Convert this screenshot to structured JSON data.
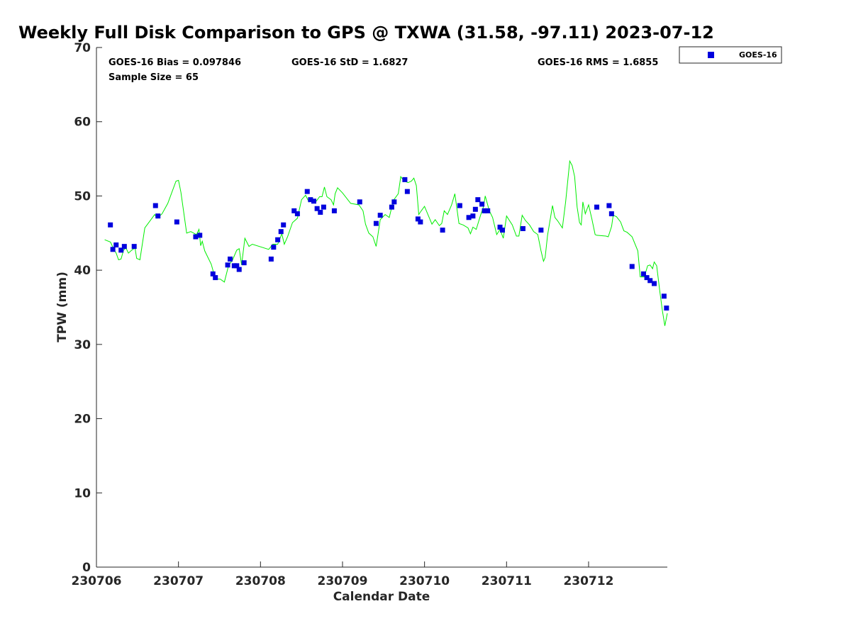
{
  "chart_data": {
    "type": "scatter",
    "title": "Weekly Full Disk Comparison to GPS @ TXWA (31.58, -97.11) 2023-07-12",
    "xlabel": "Calendar Date",
    "ylabel": "TPW (mm)",
    "xlim": [
      0.0,
      6.96
    ],
    "ylim": [
      0,
      70
    ],
    "x_tick_values": [
      0,
      1,
      2,
      3,
      4,
      5,
      6
    ],
    "x_tick_labels": [
      "230706",
      "230707",
      "230708",
      "230709",
      "230710",
      "230711",
      "230712"
    ],
    "y_ticks": [
      0,
      10,
      20,
      30,
      40,
      50,
      60,
      70
    ],
    "x_units": "days since 230706",
    "grid": false,
    "legend_position": "top-right",
    "stats": {
      "bias": "GOES-16 Bias = 0.097846",
      "std": "GOES-16 StD = 1.6827",
      "rms": "GOES-16 RMS = 1.6855",
      "sample_size": "Sample Size = 65"
    },
    "series": [
      {
        "name": "GOES-16",
        "kind": "scatter",
        "marker": "square",
        "color": "#0000dd",
        "points": [
          [
            0.17,
            46.1
          ],
          [
            0.2,
            42.8
          ],
          [
            0.24,
            43.4
          ],
          [
            0.3,
            42.7
          ],
          [
            0.34,
            43.2
          ],
          [
            0.46,
            43.2
          ],
          [
            0.72,
            48.7
          ],
          [
            0.75,
            47.3
          ],
          [
            0.98,
            46.5
          ],
          [
            1.21,
            44.5
          ],
          [
            1.26,
            44.7
          ],
          [
            1.42,
            39.5
          ],
          [
            1.45,
            39.0
          ],
          [
            1.6,
            40.7
          ],
          [
            1.63,
            41.5
          ],
          [
            1.68,
            40.6
          ],
          [
            1.71,
            40.6
          ],
          [
            1.74,
            40.1
          ],
          [
            1.8,
            41.0
          ],
          [
            2.13,
            41.5
          ],
          [
            2.16,
            43.1
          ],
          [
            2.21,
            44.1
          ],
          [
            2.25,
            45.2
          ],
          [
            2.28,
            46.1
          ],
          [
            2.41,
            48.0
          ],
          [
            2.45,
            47.6
          ],
          [
            2.57,
            50.6
          ],
          [
            2.61,
            49.5
          ],
          [
            2.65,
            49.3
          ],
          [
            2.69,
            48.3
          ],
          [
            2.73,
            47.8
          ],
          [
            2.77,
            48.5
          ],
          [
            2.9,
            48.0
          ],
          [
            3.21,
            49.2
          ],
          [
            3.41,
            46.3
          ],
          [
            3.46,
            47.4
          ],
          [
            3.6,
            48.5
          ],
          [
            3.63,
            49.2
          ],
          [
            3.76,
            52.2
          ],
          [
            3.79,
            50.6
          ],
          [
            3.92,
            46.9
          ],
          [
            3.95,
            46.5
          ],
          [
            4.22,
            45.4
          ],
          [
            4.43,
            48.7
          ],
          [
            4.54,
            47.1
          ],
          [
            4.59,
            47.3
          ],
          [
            4.62,
            48.2
          ],
          [
            4.65,
            49.5
          ],
          [
            4.7,
            48.9
          ],
          [
            4.73,
            48.0
          ],
          [
            4.77,
            48.0
          ],
          [
            4.92,
            45.8
          ],
          [
            4.95,
            45.4
          ],
          [
            5.2,
            45.6
          ],
          [
            5.42,
            45.4
          ],
          [
            6.1,
            48.5
          ],
          [
            6.25,
            48.7
          ],
          [
            6.28,
            47.6
          ],
          [
            6.53,
            40.5
          ],
          [
            6.67,
            39.5
          ],
          [
            6.71,
            39.0
          ],
          [
            6.75,
            38.6
          ],
          [
            6.8,
            38.2
          ],
          [
            6.92,
            36.5
          ],
          [
            6.95,
            34.9
          ]
        ]
      },
      {
        "name": "",
        "kind": "line",
        "color": "#00ee00",
        "points": [
          [
            0.1,
            44.1
          ],
          [
            0.17,
            43.8
          ],
          [
            0.2,
            43.1
          ],
          [
            0.24,
            42.3
          ],
          [
            0.27,
            41.4
          ],
          [
            0.3,
            41.5
          ],
          [
            0.33,
            42.7
          ],
          [
            0.36,
            43.0
          ],
          [
            0.39,
            42.3
          ],
          [
            0.43,
            42.7
          ],
          [
            0.47,
            43.0
          ],
          [
            0.49,
            41.6
          ],
          [
            0.53,
            41.4
          ],
          [
            0.59,
            45.7
          ],
          [
            0.67,
            46.9
          ],
          [
            0.71,
            47.5
          ],
          [
            0.74,
            47.0
          ],
          [
            0.8,
            47.6
          ],
          [
            0.87,
            49.0
          ],
          [
            0.92,
            50.5
          ],
          [
            0.97,
            52.0
          ],
          [
            1.0,
            52.1
          ],
          [
            1.03,
            50.5
          ],
          [
            1.1,
            45.0
          ],
          [
            1.15,
            45.2
          ],
          [
            1.22,
            44.8
          ],
          [
            1.25,
            45.5
          ],
          [
            1.27,
            43.3
          ],
          [
            1.29,
            43.9
          ],
          [
            1.32,
            42.6
          ],
          [
            1.4,
            40.8
          ],
          [
            1.45,
            38.8
          ],
          [
            1.51,
            38.8
          ],
          [
            1.56,
            38.4
          ],
          [
            1.61,
            40.6
          ],
          [
            1.66,
            41.4
          ],
          [
            1.71,
            42.7
          ],
          [
            1.74,
            42.9
          ],
          [
            1.77,
            40.7
          ],
          [
            1.81,
            44.3
          ],
          [
            1.86,
            43.2
          ],
          [
            1.9,
            43.5
          ],
          [
            2.1,
            42.8
          ],
          [
            2.15,
            43.5
          ],
          [
            2.21,
            43.5
          ],
          [
            2.26,
            44.9
          ],
          [
            2.29,
            43.5
          ],
          [
            2.33,
            44.5
          ],
          [
            2.39,
            46.4
          ],
          [
            2.45,
            47.0
          ],
          [
            2.5,
            49.5
          ],
          [
            2.55,
            50.1
          ],
          [
            2.59,
            49.2
          ],
          [
            2.64,
            49.5
          ],
          [
            2.68,
            49.3
          ],
          [
            2.72,
            49.9
          ],
          [
            2.75,
            49.9
          ],
          [
            2.78,
            51.2
          ],
          [
            2.81,
            49.9
          ],
          [
            2.86,
            49.5
          ],
          [
            2.89,
            48.8
          ],
          [
            2.91,
            50.3
          ],
          [
            2.94,
            51.1
          ],
          [
            3.0,
            50.4
          ],
          [
            3.1,
            49.0
          ],
          [
            3.2,
            48.8
          ],
          [
            3.25,
            48.0
          ],
          [
            3.28,
            46.2
          ],
          [
            3.32,
            45.0
          ],
          [
            3.37,
            44.5
          ],
          [
            3.41,
            43.2
          ],
          [
            3.46,
            46.8
          ],
          [
            3.52,
            47.5
          ],
          [
            3.57,
            47.1
          ],
          [
            3.62,
            49.4
          ],
          [
            3.68,
            50.3
          ],
          [
            3.71,
            52.6
          ],
          [
            3.75,
            52.0
          ],
          [
            3.8,
            51.8
          ],
          [
            3.84,
            52.0
          ],
          [
            3.87,
            52.4
          ],
          [
            3.9,
            51.4
          ],
          [
            3.93,
            47.5
          ],
          [
            3.96,
            48.0
          ],
          [
            4.0,
            48.6
          ],
          [
            4.09,
            46.2
          ],
          [
            4.13,
            46.8
          ],
          [
            4.18,
            46.0
          ],
          [
            4.21,
            46.3
          ],
          [
            4.24,
            48.0
          ],
          [
            4.28,
            47.5
          ],
          [
            4.33,
            48.8
          ],
          [
            4.37,
            50.3
          ],
          [
            4.42,
            46.3
          ],
          [
            4.47,
            46.1
          ],
          [
            4.53,
            45.7
          ],
          [
            4.56,
            44.9
          ],
          [
            4.59,
            45.8
          ],
          [
            4.63,
            45.5
          ],
          [
            4.68,
            47.3
          ],
          [
            4.72,
            48.6
          ],
          [
            4.74,
            50.0
          ],
          [
            4.79,
            48.0
          ],
          [
            4.83,
            47.1
          ],
          [
            4.88,
            44.8
          ],
          [
            4.92,
            45.5
          ],
          [
            4.96,
            44.3
          ],
          [
            5.0,
            47.3
          ],
          [
            5.07,
            46.1
          ],
          [
            5.12,
            44.6
          ],
          [
            5.15,
            44.6
          ],
          [
            5.19,
            47.4
          ],
          [
            5.23,
            46.7
          ],
          [
            5.28,
            46.1
          ],
          [
            5.33,
            45.2
          ],
          [
            5.38,
            44.8
          ],
          [
            5.42,
            42.6
          ],
          [
            5.45,
            41.2
          ],
          [
            5.47,
            41.7
          ],
          [
            5.5,
            44.7
          ],
          [
            5.56,
            48.7
          ],
          [
            5.59,
            47.1
          ],
          [
            5.62,
            46.7
          ],
          [
            5.68,
            45.7
          ],
          [
            5.72,
            49.2
          ],
          [
            5.77,
            54.7
          ],
          [
            5.8,
            54.1
          ],
          [
            5.83,
            52.6
          ],
          [
            5.86,
            48.5
          ],
          [
            5.89,
            46.4
          ],
          [
            5.91,
            46.1
          ],
          [
            5.93,
            49.2
          ],
          [
            5.96,
            47.6
          ],
          [
            6.0,
            48.8
          ],
          [
            6.04,
            46.9
          ],
          [
            6.08,
            44.8
          ],
          [
            6.1,
            44.7
          ],
          [
            6.21,
            44.6
          ],
          [
            6.24,
            44.5
          ],
          [
            6.28,
            45.9
          ],
          [
            6.3,
            47.4
          ],
          [
            6.34,
            47.2
          ],
          [
            6.39,
            46.5
          ],
          [
            6.43,
            45.3
          ],
          [
            6.47,
            45.1
          ],
          [
            6.53,
            44.5
          ],
          [
            6.6,
            42.6
          ],
          [
            6.63,
            39.1
          ],
          [
            6.68,
            39.1
          ],
          [
            6.72,
            40.6
          ],
          [
            6.75,
            40.7
          ],
          [
            6.78,
            40.2
          ],
          [
            6.8,
            41.1
          ],
          [
            6.83,
            40.6
          ],
          [
            6.87,
            37.0
          ],
          [
            6.9,
            34.5
          ],
          [
            6.93,
            32.5
          ],
          [
            6.96,
            34.2
          ]
        ]
      }
    ]
  }
}
